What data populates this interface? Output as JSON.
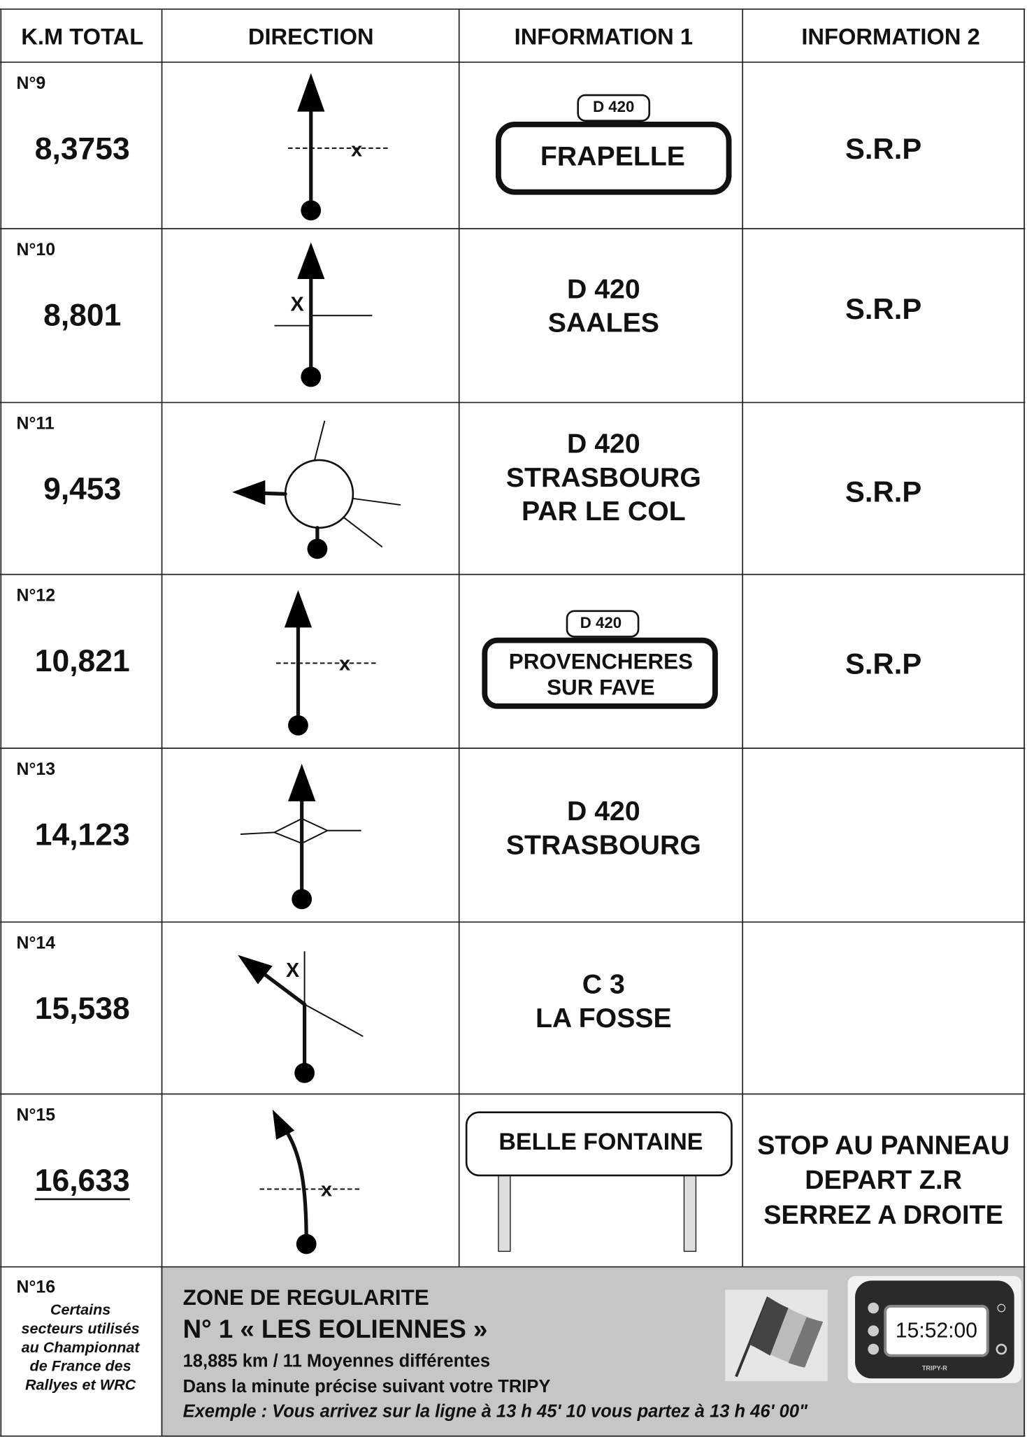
{
  "header": {
    "columns": [
      "K.M TOTAL",
      "DIRECTION",
      "INFORMATION 1",
      "INFORMATION 2"
    ]
  },
  "rows": [
    {
      "number": "N°9",
      "km": "8,3753",
      "direction_mark": "x",
      "info1": [
        "D 420",
        "FRAPELLE"
      ],
      "info2": [
        "S.R.P"
      ]
    },
    {
      "number": "N°10",
      "km": "8,801",
      "direction_mark": "X",
      "info1": [
        "D 420",
        "SAALES"
      ],
      "info2": [
        "S.R.P"
      ]
    },
    {
      "number": "N°11",
      "km": "9,453",
      "info1": [
        "D 420",
        "STRASBOURG",
        "PAR LE COL"
      ],
      "info2": [
        "S.R.P"
      ]
    },
    {
      "number": "N°12",
      "km": "10,821",
      "direction_mark": "x",
      "info1": [
        "D 420",
        "PROVENCHERES",
        "SUR FAVE"
      ],
      "info2": [
        "S.R.P"
      ]
    },
    {
      "number": "N°13",
      "km": "14,123",
      "info1": [
        "D 420",
        "STRASBOURG"
      ],
      "info2": []
    },
    {
      "number": "N°14",
      "km": "15,538",
      "direction_mark": "X",
      "info1": [
        "C 3",
        "LA FOSSE"
      ],
      "info2": []
    },
    {
      "number": "N°15",
      "km": "16,633",
      "direction_mark": "x",
      "info1": [
        "BELLE FONTAINE"
      ],
      "info2": [
        "STOP AU PANNEAU",
        "DEPART Z.R",
        "SERREZ A DROITE"
      ]
    }
  ],
  "zone": {
    "number": "N°16",
    "note": [
      "Certains",
      "secteurs utilisés",
      "au Championnat",
      "de France des",
      "Rallyes et WRC"
    ],
    "lines": [
      "ZONE DE REGULARITE",
      "N° 1 « LES EOLIENNES »",
      "18,885 km / 11 Moyennes différentes",
      "Dans la minute précise suivant votre TRIPY",
      "Exemple : Vous arrivez sur la ligne à 13 h 45' 10 vous partez à 13 h 46' 00\""
    ],
    "device_time": "15:52:00",
    "device_brand": "TRIPY-R"
  }
}
